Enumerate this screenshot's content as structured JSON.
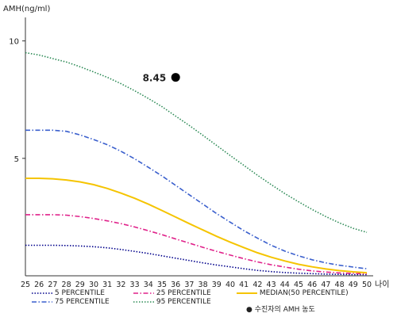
{
  "chart_data": {
    "type": "line",
    "ylabel": "AMH(ng/ml)",
    "xlabel": "나이",
    "x": [
      25,
      26,
      27,
      28,
      29,
      30,
      31,
      32,
      33,
      34,
      35,
      36,
      37,
      38,
      39,
      40,
      41,
      42,
      43,
      44,
      45,
      46,
      47,
      48,
      49,
      50
    ],
    "xlim": [
      25,
      50
    ],
    "ylim": [
      0,
      11
    ],
    "yticks": [
      5,
      10
    ],
    "grid": false,
    "series": [
      {
        "name": "5 PERCENTILE",
        "color": "#00008b",
        "dash": "dotted",
        "values": [
          1.3,
          1.3,
          1.3,
          1.29,
          1.27,
          1.24,
          1.19,
          1.12,
          1.04,
          0.95,
          0.85,
          0.75,
          0.65,
          0.55,
          0.46,
          0.38,
          0.3,
          0.23,
          0.18,
          0.14,
          0.11,
          0.09,
          0.07,
          0.06,
          0.05,
          0.05
        ]
      },
      {
        "name": "75 PERCENTILE",
        "color": "#3a5fcd",
        "dash": "dashdot",
        "values": [
          6.2,
          6.2,
          6.2,
          6.15,
          6.0,
          5.8,
          5.58,
          5.3,
          4.98,
          4.62,
          4.25,
          3.85,
          3.45,
          3.05,
          2.65,
          2.28,
          1.92,
          1.6,
          1.3,
          1.05,
          0.85,
          0.68,
          0.55,
          0.45,
          0.37,
          0.3
        ]
      },
      {
        "name": "25 PERCENTILE",
        "color": "#e0218a",
        "dash": "dashdot",
        "values": [
          2.6,
          2.6,
          2.6,
          2.58,
          2.52,
          2.44,
          2.34,
          2.22,
          2.08,
          1.92,
          1.75,
          1.57,
          1.39,
          1.21,
          1.04,
          0.88,
          0.73,
          0.59,
          0.47,
          0.37,
          0.28,
          0.21,
          0.16,
          0.12,
          0.1,
          0.08
        ]
      },
      {
        "name": "95 PERCENTILE",
        "color": "#2e8b57",
        "dash": "dotted",
        "values": [
          9.5,
          9.4,
          9.25,
          9.1,
          8.9,
          8.68,
          8.45,
          8.18,
          7.88,
          7.55,
          7.2,
          6.8,
          6.4,
          5.98,
          5.55,
          5.12,
          4.7,
          4.28,
          3.88,
          3.5,
          3.15,
          2.82,
          2.52,
          2.25,
          2.02,
          1.85
        ]
      },
      {
        "name": "MEDIAN(50 PERCENTILE)",
        "color": "#f5c400",
        "dash": "solid",
        "values": [
          4.15,
          4.15,
          4.13,
          4.08,
          4.0,
          3.88,
          3.72,
          3.52,
          3.3,
          3.05,
          2.78,
          2.5,
          2.22,
          1.95,
          1.68,
          1.43,
          1.2,
          0.98,
          0.79,
          0.63,
          0.49,
          0.38,
          0.29,
          0.22,
          0.17,
          0.13
        ]
      }
    ],
    "points": [
      {
        "name": "수진자의 AMH 농도",
        "x": 36,
        "y": 8.45,
        "label": "8.45",
        "color": "#000000"
      }
    ],
    "legend_position": "bottom"
  }
}
